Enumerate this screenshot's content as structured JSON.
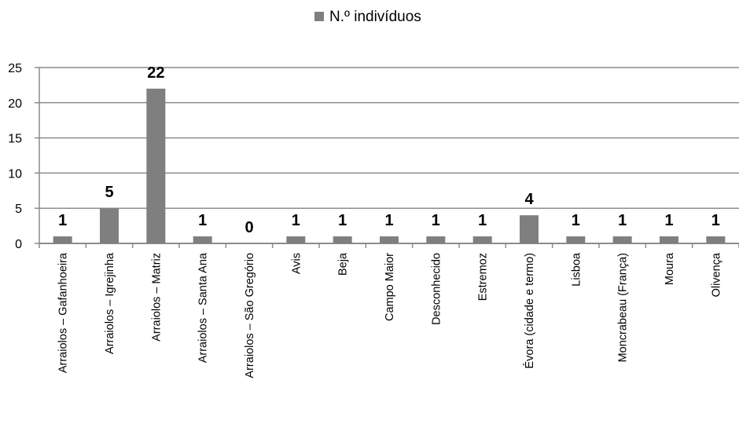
{
  "chart_data": {
    "type": "bar",
    "categories": [
      "Arraiolos – Gafanhoeira",
      "Arraiolos – Igrejinha",
      "Arraiolos – Matriz",
      "Arraiolos – Santa Ana",
      "Arraiolos – São Gregório",
      "Avis",
      "Beja",
      "Campo Maior",
      "Desconhecido",
      "Estremoz",
      "Évora (cidade e termo)",
      "Lisboa",
      "Moncrabeau (França)",
      "Moura",
      "Olivença"
    ],
    "series": [
      {
        "name": "N.º indivíduos",
        "values": [
          1,
          5,
          22,
          1,
          0,
          1,
          1,
          1,
          1,
          1,
          4,
          1,
          1,
          1,
          1
        ]
      }
    ],
    "data_labels": [
      "1",
      "5",
      "22",
      "1",
      "0",
      "1",
      "1",
      "1",
      "1",
      "1",
      "4",
      "1",
      "1",
      "1",
      "1"
    ],
    "y_ticks": [
      "0",
      "5",
      "10",
      "15",
      "20",
      "25"
    ],
    "ylim": [
      0,
      25
    ],
    "grid": true,
    "legend_position": "top-center",
    "colors": {
      "bar": "#7f7f7f",
      "grid": "#8c8c8c",
      "text": "#000000"
    }
  }
}
